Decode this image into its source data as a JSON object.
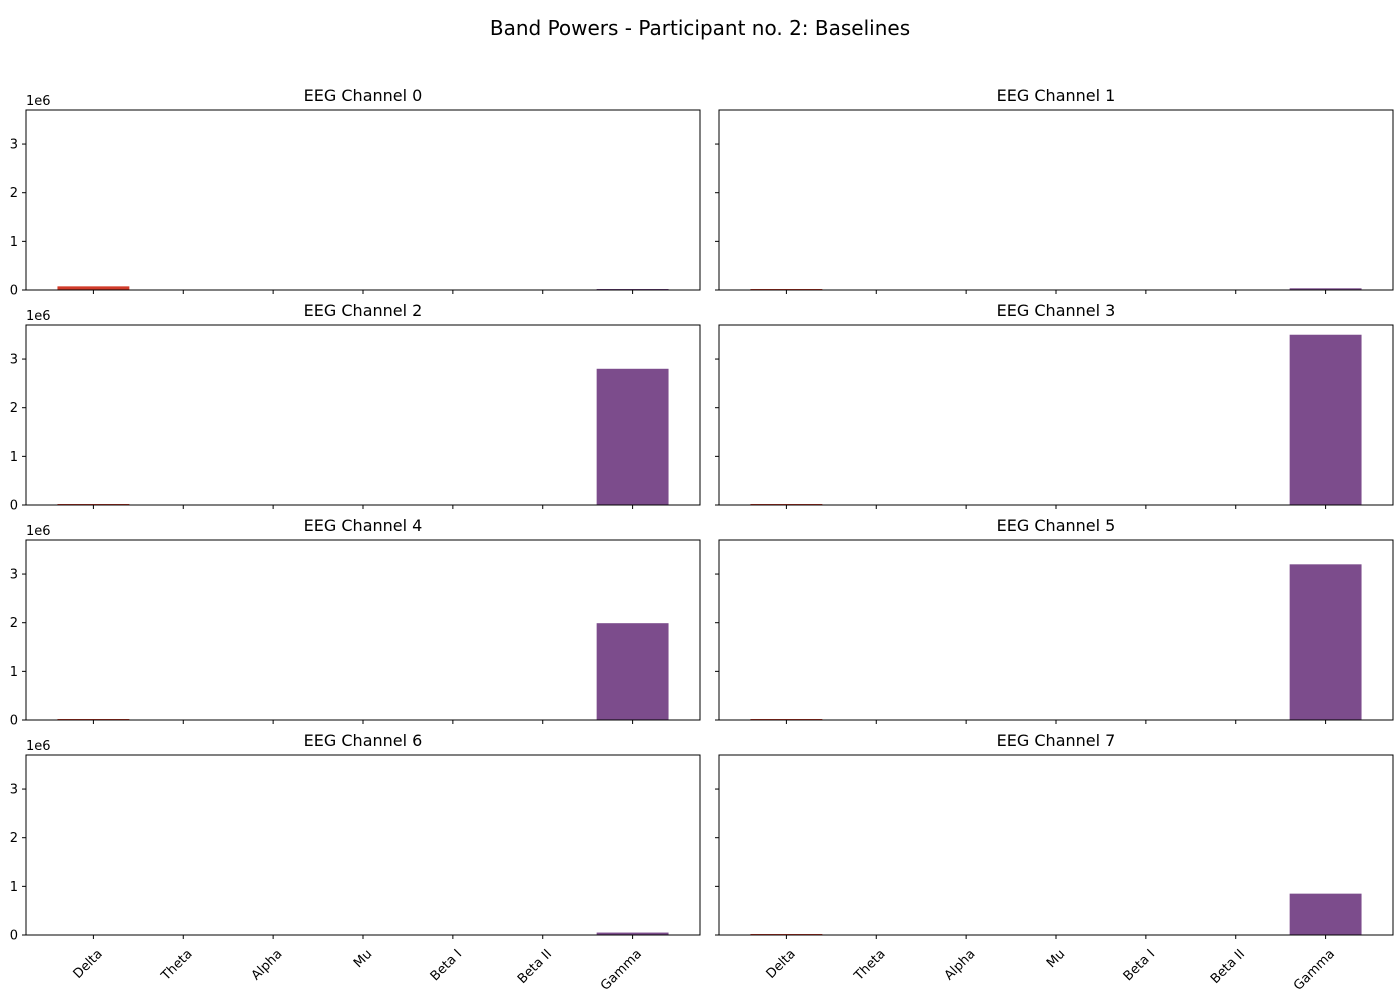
{
  "figure": {
    "title": "Band Powers - Participant no. 2: Baselines"
  },
  "chart_data": {
    "type": "bar",
    "layout": "4 rows x 2 columns, shared x and y axes",
    "categories": [
      "Delta",
      "Theta",
      "Alpha",
      "Mu",
      "Beta I",
      "Beta II",
      "Gamma"
    ],
    "bar_colors": [
      "#d13b2a",
      "#d13b2a",
      "#d13b2a",
      "#d13b2a",
      "#d13b2a",
      "#d13b2a",
      "#7c4c8c"
    ],
    "ylim": [
      0,
      3700000
    ],
    "yticks": [
      0,
      1000000,
      2000000,
      3000000
    ],
    "ytick_labels": [
      "0",
      "1",
      "2",
      "3"
    ],
    "y_offset_label": "1e6",
    "grid": false,
    "legend": "none",
    "subplots": [
      {
        "title": "EEG Channel 0",
        "values": [
          75000,
          0,
          0,
          0,
          0,
          0,
          20000
        ]
      },
      {
        "title": "EEG Channel 1",
        "values": [
          12000,
          0,
          0,
          0,
          0,
          0,
          35000
        ]
      },
      {
        "title": "EEG Channel 2",
        "values": [
          15000,
          0,
          0,
          0,
          0,
          0,
          2800000
        ]
      },
      {
        "title": "EEG Channel 3",
        "values": [
          15000,
          0,
          0,
          0,
          0,
          0,
          3500000
        ]
      },
      {
        "title": "EEG Channel 4",
        "values": [
          15000,
          0,
          0,
          0,
          0,
          0,
          1990000
        ]
      },
      {
        "title": "EEG Channel 5",
        "values": [
          15000,
          0,
          0,
          0,
          0,
          0,
          3200000
        ]
      },
      {
        "title": "EEG Channel 6",
        "values": [
          0,
          0,
          0,
          0,
          0,
          0,
          50000
        ]
      },
      {
        "title": "EEG Channel 7",
        "values": [
          12000,
          0,
          0,
          0,
          0,
          0,
          850000
        ]
      }
    ]
  }
}
